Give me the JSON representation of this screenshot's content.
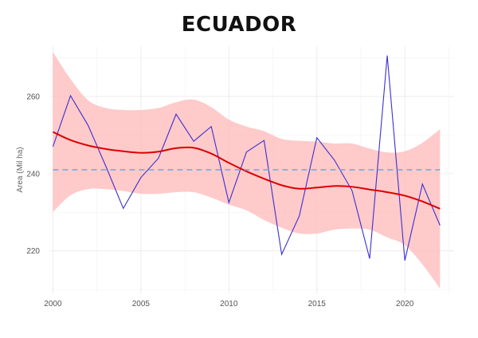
{
  "title": "ECUADOR",
  "chart_data": {
    "type": "line",
    "title": "ECUADOR",
    "xlabel": "",
    "ylabel": "Area (Mil ha)",
    "xlim": [
      1999.8,
      2022.8
    ],
    "ylim": [
      209,
      273
    ],
    "x_ticks": [
      2000,
      2005,
      2010,
      2015,
      2020
    ],
    "y_ticks": [
      220,
      240,
      260
    ],
    "grid": true,
    "legend": "none",
    "series": [
      {
        "kind": "observed",
        "color": "#3a2fd0",
        "x": [
          2000,
          2001,
          2002,
          2003,
          2004,
          2005,
          2006,
          2007,
          2008,
          2009,
          2010,
          2011,
          2012,
          2013,
          2014,
          2015,
          2016,
          2017,
          2018,
          2019,
          2020,
          2021,
          2022
        ],
        "values": [
          247,
          260.2,
          252.5,
          242,
          231,
          239,
          244,
          255.4,
          248.4,
          252.2,
          232.5,
          245.6,
          248.6,
          219.1,
          229,
          249.3,
          243.5,
          235.6,
          218,
          270.6,
          217.5,
          237.3,
          226.6
        ]
      },
      {
        "kind": "smooth_trend",
        "color": "#dd0000",
        "x": [
          2000,
          2001,
          2002,
          2003,
          2004,
          2005,
          2006,
          2007,
          2008,
          2009,
          2010,
          2011,
          2012,
          2013,
          2014,
          2015,
          2016,
          2017,
          2018,
          2019,
          2020,
          2021,
          2022
        ],
        "values": [
          250.8,
          248.7,
          247.3,
          246.4,
          245.8,
          245.4,
          245.7,
          246.6,
          246.7,
          245.2,
          242.8,
          240.6,
          238.7,
          237,
          236.1,
          236.4,
          236.8,
          236.6,
          235.9,
          235.2,
          234.3,
          232.8,
          230.9
        ]
      },
      {
        "kind": "mean",
        "color": "#6fa8dc",
        "style": "dashed",
        "x": [
          2000,
          2022
        ],
        "values": [
          241,
          241
        ]
      }
    ],
    "confidence_band": {
      "color": "#ffb8b8",
      "x": [
        2000,
        2001,
        2002,
        2003,
        2004,
        2005,
        2006,
        2007,
        2008,
        2009,
        2010,
        2011,
        2012,
        2013,
        2014,
        2015,
        2016,
        2017,
        2018,
        2019,
        2020,
        2021,
        2022
      ],
      "upper": [
        271.5,
        264.5,
        259,
        257,
        256.5,
        256.5,
        257,
        258.5,
        259.2,
        257.2,
        254,
        252.2,
        251,
        249,
        248.5,
        248.3,
        247.8,
        247.8,
        246.5,
        245.5,
        245.8,
        248,
        251.5
      ],
      "lower": [
        230.1,
        234.4,
        236,
        236,
        235.5,
        234.8,
        234.8,
        235.2,
        235.2,
        233.8,
        232,
        230.5,
        228,
        226,
        224.5,
        224.5,
        225.5,
        225.8,
        225.5,
        223.5,
        221.5,
        216.5,
        210.2
      ]
    }
  }
}
